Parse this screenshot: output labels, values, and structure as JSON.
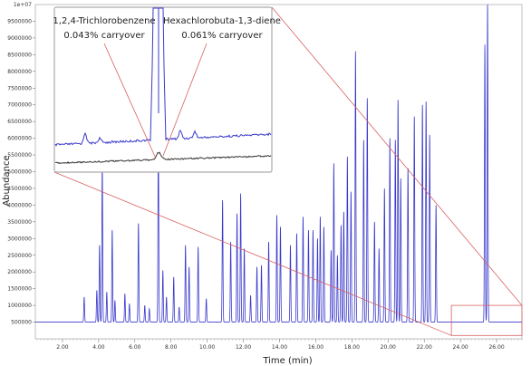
{
  "chart_data": {
    "type": "line",
    "xlabel": "Time (min)",
    "ylabel": "Abundance",
    "y_multiplier_label": "1e+07",
    "xlim": [
      0.5,
      27.4
    ],
    "ylim": [
      0,
      10000000
    ],
    "x_ticks": [
      2,
      4,
      6,
      8,
      10,
      12,
      14,
      16,
      18,
      20,
      22,
      24,
      26
    ],
    "x_tick_labels": [
      "2.00",
      "4.00",
      "6.00",
      "8.00",
      "10.00",
      "12.00",
      "14.00",
      "16.00",
      "18.00",
      "20.00",
      "22.00",
      "24.00",
      "26.00"
    ],
    "y_ticks": [
      500000,
      1000000,
      1500000,
      2000000,
      2500000,
      3000000,
      3500000,
      4000000,
      4500000,
      5000000,
      5500000,
      6000000,
      6500000,
      7000000,
      7500000,
      8000000,
      8500000,
      9000000,
      9500000
    ],
    "y_tick_labels": [
      "500000",
      "1000000",
      "1500000",
      "2000000",
      "2500000",
      "3000000",
      "3500000",
      "4000000",
      "4500000",
      "5000000",
      "5500000",
      "6000000",
      "6500000",
      "7000000",
      "7500000",
      "8000000",
      "8500000",
      "9000000",
      "9500000"
    ],
    "baseline": 500000,
    "series": [
      {
        "color": "#3a3acc",
        "peaks": [
          {
            "rt": 3.2,
            "height": 1250000
          },
          {
            "rt": 3.9,
            "height": 1450000
          },
          {
            "rt": 4.05,
            "height": 2800000
          },
          {
            "rt": 4.2,
            "height": 5300000
          },
          {
            "rt": 4.45,
            "height": 1400000
          },
          {
            "rt": 4.75,
            "height": 3250000
          },
          {
            "rt": 4.9,
            "height": 1150000
          },
          {
            "rt": 5.45,
            "height": 1350000
          },
          {
            "rt": 5.7,
            "height": 1050000
          },
          {
            "rt": 6.2,
            "height": 3450000
          },
          {
            "rt": 6.55,
            "height": 1000000
          },
          {
            "rt": 6.8,
            "height": 900000
          },
          {
            "rt": 7.3,
            "height": 6050000
          },
          {
            "rt": 7.55,
            "height": 2050000
          },
          {
            "rt": 7.75,
            "height": 1250000
          },
          {
            "rt": 8.15,
            "height": 1850000
          },
          {
            "rt": 8.45,
            "height": 950000
          },
          {
            "rt": 8.8,
            "height": 2800000
          },
          {
            "rt": 9.0,
            "height": 2150000
          },
          {
            "rt": 9.5,
            "height": 2750000
          },
          {
            "rt": 9.95,
            "height": 1200000
          },
          {
            "rt": 10.85,
            "height": 4150000
          },
          {
            "rt": 11.3,
            "height": 2900000
          },
          {
            "rt": 11.65,
            "height": 3750000
          },
          {
            "rt": 11.85,
            "height": 4350000
          },
          {
            "rt": 12.05,
            "height": 2700000
          },
          {
            "rt": 12.4,
            "height": 1300000
          },
          {
            "rt": 12.75,
            "height": 2150000
          },
          {
            "rt": 13.0,
            "height": 2200000
          },
          {
            "rt": 13.4,
            "height": 2900000
          },
          {
            "rt": 13.85,
            "height": 3700000
          },
          {
            "rt": 14.05,
            "height": 3350000
          },
          {
            "rt": 14.6,
            "height": 2800000
          },
          {
            "rt": 14.95,
            "height": 3150000
          },
          {
            "rt": 15.3,
            "height": 3650000
          },
          {
            "rt": 15.6,
            "height": 3250000
          },
          {
            "rt": 15.85,
            "height": 3250000
          },
          {
            "rt": 16.1,
            "height": 3000000
          },
          {
            "rt": 16.25,
            "height": 3650000
          },
          {
            "rt": 16.45,
            "height": 3350000
          },
          {
            "rt": 16.85,
            "height": 2650000
          },
          {
            "rt": 17.0,
            "height": 5250000
          },
          {
            "rt": 17.2,
            "height": 2500000
          },
          {
            "rt": 17.4,
            "height": 3400000
          },
          {
            "rt": 17.55,
            "height": 3800000
          },
          {
            "rt": 17.75,
            "height": 5450000
          },
          {
            "rt": 17.95,
            "height": 4400000
          },
          {
            "rt": 18.2,
            "height": 8600000
          },
          {
            "rt": 18.65,
            "height": 5950000
          },
          {
            "rt": 18.85,
            "height": 7200000
          },
          {
            "rt": 19.25,
            "height": 3500000
          },
          {
            "rt": 19.5,
            "height": 2700000
          },
          {
            "rt": 19.8,
            "height": 4500000
          },
          {
            "rt": 20.1,
            "height": 6000000
          },
          {
            "rt": 20.4,
            "height": 5950000
          },
          {
            "rt": 20.55,
            "height": 7150000
          },
          {
            "rt": 20.7,
            "height": 4800000
          },
          {
            "rt": 21.1,
            "height": 5100000
          },
          {
            "rt": 21.45,
            "height": 6650000
          },
          {
            "rt": 21.9,
            "height": 7000000
          },
          {
            "rt": 22.1,
            "height": 7100000
          },
          {
            "rt": 22.3,
            "height": 6100000
          },
          {
            "rt": 22.65,
            "height": 4000000
          },
          {
            "rt": 25.35,
            "height": 8800000
          },
          {
            "rt": 25.5,
            "height": 10000000
          }
        ]
      }
    ],
    "inset": {
      "labels": [
        {
          "compound": "1,2,4-Trichlorobenzene",
          "carryover": "0.043% carryover"
        },
        {
          "compound": "Hexachlorobuta-1,3-diene",
          "carryover": "0.061% carryover"
        }
      ],
      "zoom_region": {
        "x": [
          23.5,
          27.4
        ],
        "y": [
          100000,
          1000000
        ]
      },
      "series_colors": [
        "#3a3acc",
        "#333333"
      ]
    }
  }
}
